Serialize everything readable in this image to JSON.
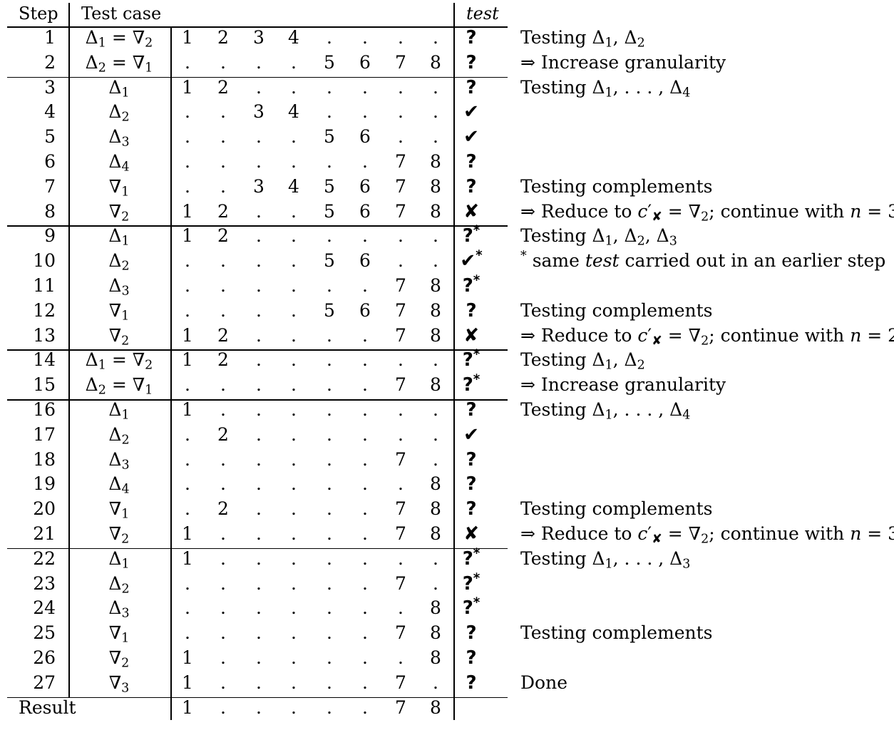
{
  "headers": {
    "step": "Step",
    "test_case": "Test case",
    "test": "test"
  },
  "rows": [
    {
      "step": "1",
      "case_html": "Δ<sub>1</sub> = ∇<sub>2</sub>",
      "cells": [
        "1",
        "2",
        "3",
        "4",
        ".",
        ".",
        ".",
        "."
      ],
      "result": "?",
      "star": false,
      "note_html": "Testing Δ<sub>1</sub>, Δ<sub>2</sub>"
    },
    {
      "step": "2",
      "case_html": "Δ<sub>2</sub> = ∇<sub>1</sub>",
      "cells": [
        ".",
        ".",
        ".",
        ".",
        "5",
        "6",
        "7",
        "8"
      ],
      "result": "?",
      "star": false,
      "note_html": "⇒ Increase granularity"
    },
    {
      "step": "3",
      "case_html": "Δ<sub>1</sub>",
      "cells": [
        "1",
        "2",
        ".",
        ".",
        ".",
        ".",
        ".",
        "."
      ],
      "result": "?",
      "star": false,
      "note_html": "Testing Δ<sub>1</sub>, . . . , Δ<sub>4</sub>"
    },
    {
      "step": "4",
      "case_html": "Δ<sub>2</sub>",
      "cells": [
        ".",
        ".",
        "3",
        "4",
        ".",
        ".",
        ".",
        "."
      ],
      "result": "✔",
      "star": false,
      "note_html": ""
    },
    {
      "step": "5",
      "case_html": "Δ<sub>3</sub>",
      "cells": [
        ".",
        ".",
        ".",
        ".",
        "5",
        "6",
        ".",
        "."
      ],
      "result": "✔",
      "star": false,
      "note_html": ""
    },
    {
      "step": "6",
      "case_html": "Δ<sub>4</sub>",
      "cells": [
        ".",
        ".",
        ".",
        ".",
        ".",
        ".",
        "7",
        "8"
      ],
      "result": "?",
      "star": false,
      "note_html": ""
    },
    {
      "step": "7",
      "case_html": "∇<sub>1</sub>",
      "cells": [
        ".",
        ".",
        "3",
        "4",
        "5",
        "6",
        "7",
        "8"
      ],
      "result": "?",
      "star": false,
      "note_html": "Testing complements"
    },
    {
      "step": "8",
      "case_html": "∇<sub>2</sub>",
      "cells": [
        "1",
        "2",
        ".",
        ".",
        "5",
        "6",
        "7",
        "8"
      ],
      "result": "✘",
      "star": false,
      "note_html": "⇒ Reduce to <i>c</i>′<sub>✘</sub> = ∇<sub>2</sub>; continue with <i>n</i> = 3"
    },
    {
      "step": "9",
      "case_html": "Δ<sub>1</sub>",
      "cells": [
        "1",
        "2",
        ".",
        ".",
        ".",
        ".",
        ".",
        "."
      ],
      "result": "?",
      "star": true,
      "note_html": "Testing Δ<sub>1</sub>, Δ<sub>2</sub>, Δ<sub>3</sub>"
    },
    {
      "step": "10",
      "case_html": "Δ<sub>2</sub>",
      "cells": [
        ".",
        ".",
        ".",
        ".",
        "5",
        "6",
        ".",
        "."
      ],
      "result": "✔",
      "star": true,
      "note_html": "<sup>*</sup> same <i>test</i> carried out in an earlier step"
    },
    {
      "step": "11",
      "case_html": "Δ<sub>3</sub>",
      "cells": [
        ".",
        ".",
        ".",
        ".",
        ".",
        ".",
        "7",
        "8"
      ],
      "result": "?",
      "star": true,
      "note_html": ""
    },
    {
      "step": "12",
      "case_html": "∇<sub>1</sub>",
      "cells": [
        ".",
        ".",
        ".",
        ".",
        "5",
        "6",
        "7",
        "8"
      ],
      "result": "?",
      "star": false,
      "note_html": "Testing complements"
    },
    {
      "step": "13",
      "case_html": "∇<sub>2</sub>",
      "cells": [
        "1",
        "2",
        ".",
        ".",
        ".",
        ".",
        "7",
        "8"
      ],
      "result": "✘",
      "star": false,
      "note_html": "⇒ Reduce to <i>c</i>′<sub>✘</sub> = ∇<sub>2</sub>; continue with <i>n</i> = 2"
    },
    {
      "step": "14",
      "case_html": "Δ<sub>1</sub> = ∇<sub>2</sub>",
      "cells": [
        "1",
        "2",
        ".",
        ".",
        ".",
        ".",
        ".",
        "."
      ],
      "result": "?",
      "star": true,
      "note_html": "Testing Δ<sub>1</sub>, Δ<sub>2</sub>"
    },
    {
      "step": "15",
      "case_html": "Δ<sub>2</sub> = ∇<sub>1</sub>",
      "cells": [
        ".",
        ".",
        ".",
        ".",
        ".",
        ".",
        "7",
        "8"
      ],
      "result": "?",
      "star": true,
      "note_html": "⇒ Increase granularity"
    },
    {
      "step": "16",
      "case_html": "Δ<sub>1</sub>",
      "cells": [
        "1",
        ".",
        ".",
        ".",
        ".",
        ".",
        ".",
        "."
      ],
      "result": "?",
      "star": false,
      "note_html": "Testing Δ<sub>1</sub>, . . . , Δ<sub>4</sub>"
    },
    {
      "step": "17",
      "case_html": "Δ<sub>2</sub>",
      "cells": [
        ".",
        "2",
        ".",
        ".",
        ".",
        ".",
        ".",
        "."
      ],
      "result": "✔",
      "star": false,
      "note_html": ""
    },
    {
      "step": "18",
      "case_html": "Δ<sub>3</sub>",
      "cells": [
        ".",
        ".",
        ".",
        ".",
        ".",
        ".",
        "7",
        "."
      ],
      "result": "?",
      "star": false,
      "note_html": ""
    },
    {
      "step": "19",
      "case_html": "Δ<sub>4</sub>",
      "cells": [
        ".",
        ".",
        ".",
        ".",
        ".",
        ".",
        ".",
        "8"
      ],
      "result": "?",
      "star": false,
      "note_html": ""
    },
    {
      "step": "20",
      "case_html": "∇<sub>1</sub>",
      "cells": [
        ".",
        "2",
        ".",
        ".",
        ".",
        ".",
        "7",
        "8"
      ],
      "result": "?",
      "star": false,
      "note_html": "Testing complements"
    },
    {
      "step": "21",
      "case_html": "∇<sub>2</sub>",
      "cells": [
        "1",
        ".",
        ".",
        ".",
        ".",
        ".",
        "7",
        "8"
      ],
      "result": "✘",
      "star": false,
      "note_html": "⇒ Reduce to <i>c</i>′<sub>✘</sub> = ∇<sub>2</sub>; continue with <i>n</i> = 3"
    },
    {
      "step": "22",
      "case_html": "Δ<sub>1</sub>",
      "cells": [
        "1",
        ".",
        ".",
        ".",
        ".",
        ".",
        ".",
        "."
      ],
      "result": "?",
      "star": true,
      "note_html": "Testing Δ<sub>1</sub>, . . . , Δ<sub>3</sub>"
    },
    {
      "step": "23",
      "case_html": "Δ<sub>2</sub>",
      "cells": [
        ".",
        ".",
        ".",
        ".",
        ".",
        ".",
        "7",
        "."
      ],
      "result": "?",
      "star": true,
      "note_html": ""
    },
    {
      "step": "24",
      "case_html": "Δ<sub>3</sub>",
      "cells": [
        ".",
        ".",
        ".",
        ".",
        ".",
        ".",
        ".",
        "8"
      ],
      "result": "?",
      "star": true,
      "note_html": ""
    },
    {
      "step": "25",
      "case_html": "∇<sub>1</sub>",
      "cells": [
        ".",
        ".",
        ".",
        ".",
        ".",
        ".",
        "7",
        "8"
      ],
      "result": "?",
      "star": false,
      "note_html": "Testing complements"
    },
    {
      "step": "26",
      "case_html": "∇<sub>2</sub>",
      "cells": [
        "1",
        ".",
        ".",
        ".",
        ".",
        ".",
        ".",
        "8"
      ],
      "result": "?",
      "star": false,
      "note_html": ""
    },
    {
      "step": "27",
      "case_html": "∇<sub>3</sub>",
      "cells": [
        "1",
        ".",
        ".",
        ".",
        ".",
        ".",
        "7",
        "."
      ],
      "result": "?",
      "star": false,
      "note_html": "Done"
    }
  ],
  "result_row": {
    "label": "Result",
    "cells": [
      "1",
      ".",
      ".",
      ".",
      ".",
      ".",
      "7",
      "8"
    ]
  }
}
